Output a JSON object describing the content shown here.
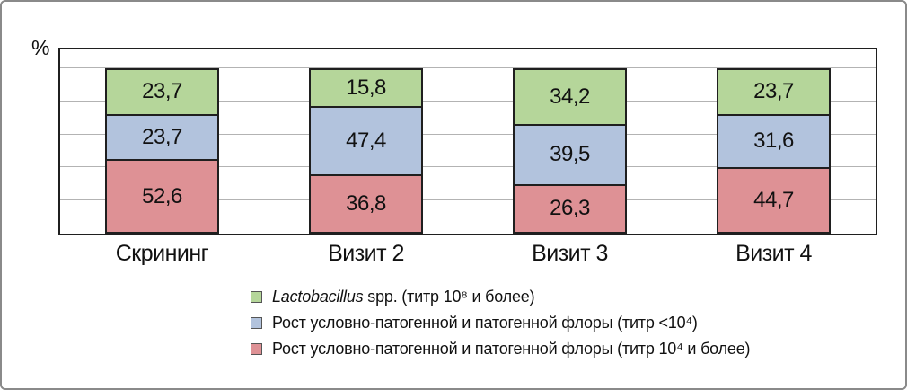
{
  "chart_data": {
    "type": "bar",
    "stacked": true,
    "title": "",
    "ylabel": "%",
    "xlabel": "",
    "ylim": [
      0,
      111
    ],
    "grid": true,
    "gridlines_pct": [
      20,
      40,
      60,
      80,
      100
    ],
    "value_format": "comma-decimal",
    "categories": [
      "Скрининг",
      "Визит 2",
      "Визит 3",
      "Визит 4"
    ],
    "series": [
      {
        "name": "Lactobacillus spp. (титр 10⁸ и более)",
        "color": "#b5d69a",
        "values": [
          23.7,
          15.8,
          34.2,
          23.7
        ]
      },
      {
        "name": "Рост условно-патогенной и патогенной флоры (титр <10⁴)",
        "color": "#b2c3dd",
        "values": [
          23.7,
          47.4,
          39.5,
          31.6
        ]
      },
      {
        "name": "Рост условно-патогенной и патогенной флоры (титр 10⁴ и более)",
        "color": "#de9195",
        "values": [
          52.6,
          36.8,
          26.3,
          44.7
        ]
      }
    ],
    "legend_position": "bottom"
  },
  "legend": {
    "items": [
      {
        "italic": "Lactobacillus",
        "rest": " spp. (титр 10⁸ и более)",
        "color": "#b5d69a"
      },
      {
        "italic": "",
        "rest": "Рост условно-патогенной и патогенной флоры (титр <10⁴)",
        "color": "#b2c3dd"
      },
      {
        "italic": "",
        "rest": "Рост условно-патогенной и патогенной флоры (титр 10⁴ и более)",
        "color": "#de9195"
      }
    ]
  },
  "colors": {
    "axis": "#1f1f1f",
    "gridline": "#b3b3b3",
    "outer_border": "#8a8a8a",
    "background": "#ffffff"
  }
}
